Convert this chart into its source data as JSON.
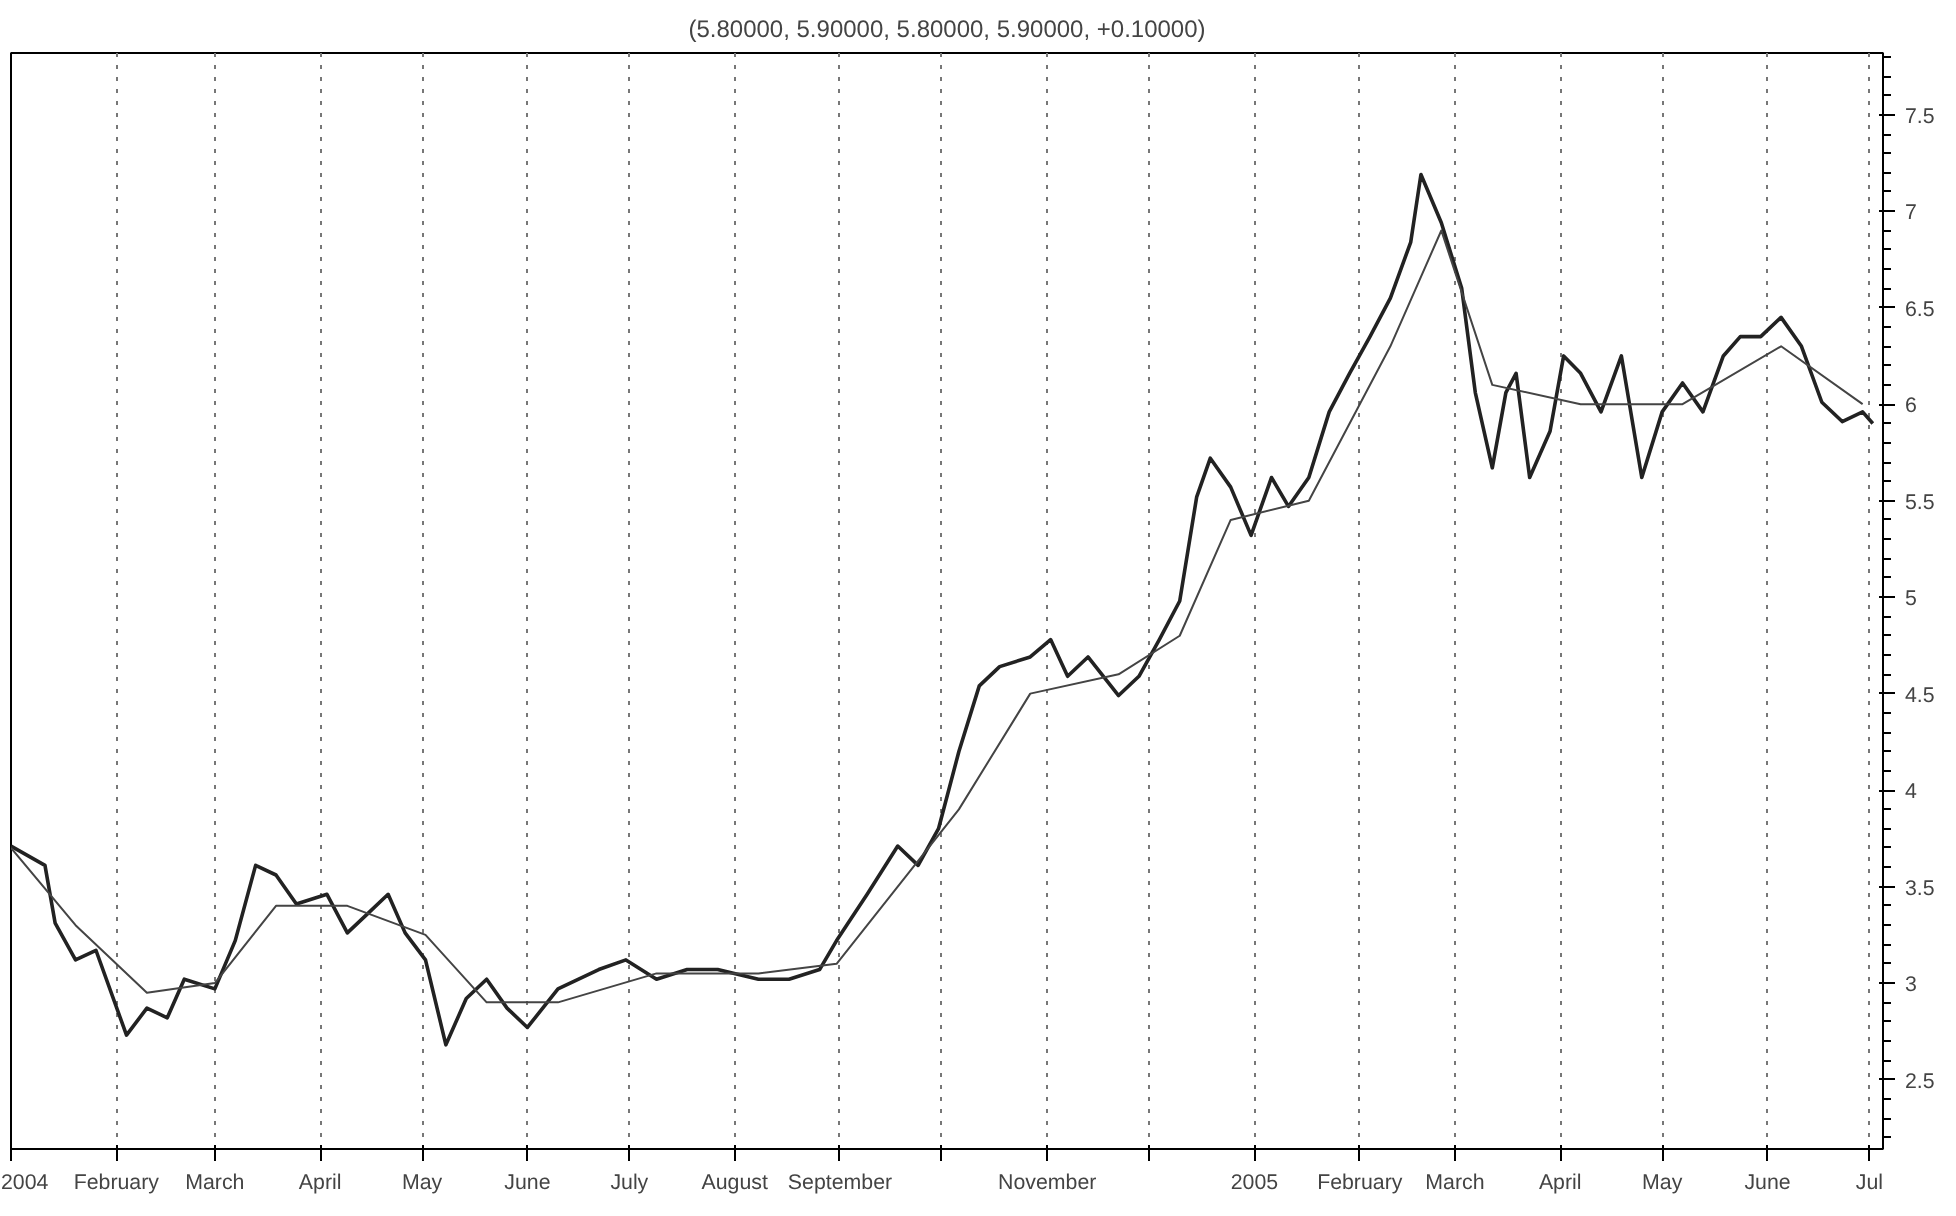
{
  "chart_data": {
    "type": "line",
    "title": "(5.80000, 5.90000, 5.80000, 5.90000, +0.10000)",
    "xlim": [
      "2004-01-01",
      "2005-07-05"
    ],
    "ylim": [
      2.14,
      7.82
    ],
    "yticks": [
      2.5,
      3.0,
      3.5,
      4.0,
      4.5,
      5.0,
      5.5,
      6.0,
      6.5,
      7.0,
      7.5
    ],
    "xticks": [
      {
        "value": "2004-01-01",
        "label": "2004"
      },
      {
        "value": "2004-02-01",
        "label": "February"
      },
      {
        "value": "2004-03-01",
        "label": "March"
      },
      {
        "value": "2004-04-01",
        "label": "April"
      },
      {
        "value": "2004-05-01",
        "label": "May"
      },
      {
        "value": "2004-06-01",
        "label": "June"
      },
      {
        "value": "2004-07-01",
        "label": "July"
      },
      {
        "value": "2004-08-01",
        "label": "August"
      },
      {
        "value": "2004-09-01",
        "label": "September"
      },
      {
        "value": "2004-10-01",
        "label": null
      },
      {
        "value": "2004-11-01",
        "label": "November"
      },
      {
        "value": "2004-12-01",
        "label": null
      },
      {
        "value": "2005-01-01",
        "label": "2005"
      },
      {
        "value": "2005-02-01",
        "label": "February"
      },
      {
        "value": "2005-03-01",
        "label": "March"
      },
      {
        "value": "2005-04-01",
        "label": "April"
      },
      {
        "value": "2005-05-01",
        "label": "May"
      },
      {
        "value": "2005-06-01",
        "label": "June"
      },
      {
        "value": "2005-07-01",
        "label": "Jul"
      }
    ],
    "grid": "x",
    "series": [
      {
        "color": "#222222",
        "x": [
          "2004-01-01",
          "2004-01-11",
          "2004-01-14",
          "2004-01-20",
          "2004-01-26",
          "2004-02-04",
          "2004-02-10",
          "2004-02-16",
          "2004-02-21",
          "2004-03-01",
          "2004-03-07",
          "2004-03-13",
          "2004-03-19",
          "2004-03-25",
          "2004-04-03",
          "2004-04-09",
          "2004-04-15",
          "2004-04-21",
          "2004-04-26",
          "2004-05-02",
          "2004-05-08",
          "2004-05-14",
          "2004-05-20",
          "2004-05-26",
          "2004-06-01",
          "2004-06-10",
          "2004-06-22",
          "2004-06-30",
          "2004-07-09",
          "2004-07-18",
          "2004-07-27",
          "2004-08-08",
          "2004-08-17",
          "2004-08-26",
          "2004-08-31",
          "2004-09-09",
          "2004-09-18",
          "2004-09-24",
          "2004-09-30",
          "2004-10-06",
          "2004-10-12",
          "2004-10-18",
          "2004-10-27",
          "2004-11-02",
          "2004-11-07",
          "2004-11-13",
          "2004-11-22",
          "2004-11-28",
          "2004-12-04",
          "2004-12-10",
          "2004-12-15",
          "2004-12-19",
          "2004-12-25",
          "2004-12-31",
          "2005-01-06",
          "2005-01-11",
          "2005-01-17",
          "2005-01-23",
          "2005-01-29",
          "2005-02-04",
          "2005-02-10",
          "2005-02-16",
          "2005-02-19",
          "2005-02-25",
          "2005-03-03",
          "2005-03-07",
          "2005-03-12",
          "2005-03-16",
          "2005-03-19",
          "2005-03-23",
          "2005-03-29",
          "2005-04-02",
          "2005-04-07",
          "2005-04-13",
          "2005-04-19",
          "2005-04-25",
          "2005-05-01",
          "2005-05-07",
          "2005-05-13",
          "2005-05-19",
          "2005-05-24",
          "2005-05-30",
          "2005-06-05",
          "2005-06-11",
          "2005-06-17",
          "2005-06-23",
          "2005-06-29",
          "2005-07-02"
        ],
        "values": [
          3.71,
          3.61,
          3.31,
          3.12,
          3.17,
          2.73,
          2.87,
          2.82,
          3.02,
          2.97,
          3.22,
          3.61,
          3.56,
          3.41,
          3.46,
          3.26,
          3.36,
          3.46,
          3.26,
          3.12,
          2.68,
          2.92,
          3.02,
          2.87,
          2.77,
          2.97,
          3.07,
          3.12,
          3.02,
          3.07,
          3.07,
          3.02,
          3.02,
          3.07,
          3.22,
          3.46,
          3.71,
          3.61,
          3.8,
          4.2,
          4.54,
          4.64,
          4.69,
          4.78,
          4.59,
          4.69,
          4.49,
          4.59,
          4.78,
          4.98,
          5.52,
          5.72,
          5.57,
          5.32,
          5.62,
          5.47,
          5.62,
          5.96,
          6.16,
          6.35,
          6.55,
          6.84,
          7.19,
          6.94,
          6.6,
          6.06,
          5.67,
          6.06,
          6.16,
          5.62,
          5.86,
          6.25,
          6.16,
          5.96,
          6.25,
          5.62,
          5.96,
          6.11,
          5.96,
          6.25,
          6.35,
          6.35,
          6.45,
          6.3,
          6.01,
          5.91,
          5.96,
          5.9
        ]
      },
      {
        "color": "#444444",
        "x": [
          "2004-01-01",
          "2004-01-20",
          "2004-02-10",
          "2004-03-01",
          "2004-03-19",
          "2004-04-09",
          "2004-05-02",
          "2004-05-20",
          "2004-06-10",
          "2004-07-09",
          "2004-08-08",
          "2004-08-31",
          "2004-09-18",
          "2004-10-06",
          "2004-10-27",
          "2004-11-22",
          "2004-12-10",
          "2004-12-25",
          "2005-01-17",
          "2005-02-10",
          "2005-02-25",
          "2005-03-12",
          "2005-04-07",
          "2005-05-07",
          "2005-06-05",
          "2005-06-29"
        ],
        "values": [
          3.7,
          3.3,
          2.95,
          3.0,
          3.4,
          3.4,
          3.25,
          2.9,
          2.9,
          3.05,
          3.05,
          3.1,
          3.5,
          3.9,
          4.5,
          4.6,
          4.8,
          5.4,
          5.5,
          6.3,
          6.9,
          6.1,
          6.0,
          6.0,
          6.3,
          6.0
        ]
      }
    ]
  }
}
